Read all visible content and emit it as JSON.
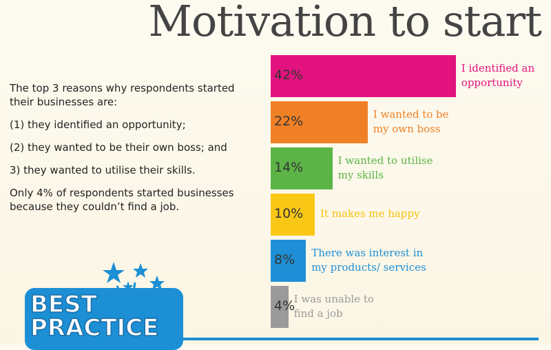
{
  "chart_data": {
    "type": "bar",
    "orientation": "horizontal",
    "title": "Motivation to start",
    "text": [
      "The top 3 reasons why respondents started their businesses are:",
      "(1) they identified an opportunity;",
      "(2) they wanted to be their own boss; and",
      "3) they wanted to utilise their skills.",
      "Only 4% of respondents started businesses because they couldn’t find a job."
    ],
    "categories": [
      [
        "I identified an",
        "opportunity"
      ],
      [
        "I wanted to be",
        "my own boss"
      ],
      [
        "I wanted to utilise",
        "my skills"
      ],
      [
        "It makes me happy"
      ],
      [
        "There was interest in",
        "my products/ services"
      ],
      [
        "I was unable to",
        "find a job"
      ]
    ],
    "values": [
      42,
      22,
      14,
      10,
      8,
      4
    ],
    "value_labels": [
      "42%",
      "22%",
      "14%",
      "10%",
      "8%",
      "4%"
    ],
    "colors": [
      "#e2137f",
      "#f08026",
      "#5cb446",
      "#f9c817",
      "#1e8fd6",
      "#9a9a9a"
    ],
    "label_colors": [
      "#e2137f",
      "#f08026",
      "#5cb446",
      "#f5c20f",
      "#1e8fd6",
      "#9a9a9a"
    ],
    "badge": [
      "BEST",
      "PRACTICE"
    ]
  }
}
